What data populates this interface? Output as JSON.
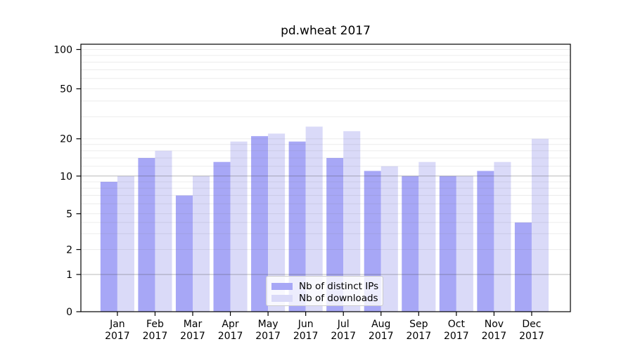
{
  "title": "pd.wheat 2017",
  "chart_data": {
    "type": "bar",
    "title": "pd.wheat 2017",
    "categories": [
      "Jan",
      "Feb",
      "Mar",
      "Apr",
      "May",
      "Jun",
      "Jul",
      "Aug",
      "Sep",
      "Oct",
      "Nov",
      "Dec"
    ],
    "category_year": "2017",
    "series": [
      {
        "name": "Nb of distinct IPs",
        "color": "#a7a7f6",
        "values": [
          9,
          14,
          7,
          13,
          21,
          19,
          14,
          11,
          10,
          10,
          11,
          4
        ]
      },
      {
        "name": "Nb of downloads",
        "color": "#dadaf8",
        "values": [
          10,
          16,
          10,
          19,
          22,
          25,
          23,
          12,
          13,
          10,
          13,
          20
        ]
      }
    ],
    "yticks": [
      0,
      1,
      2,
      5,
      10,
      20,
      50,
      100
    ],
    "major_grid_values": [
      1,
      10
    ],
    "minor_grid_values": [
      2,
      3,
      4,
      5,
      6,
      7,
      8,
      9,
      12,
      14,
      16,
      18,
      20,
      30,
      40,
      50,
      60,
      70,
      80,
      90,
      100
    ],
    "ylim": [
      0,
      110
    ],
    "yscale": "asinh-like",
    "grid": true,
    "legend_position": "lower-center"
  }
}
